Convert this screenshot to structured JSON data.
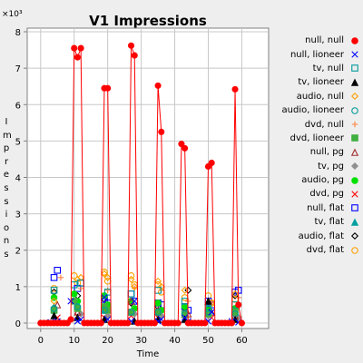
{
  "chart_data": {
    "type": "line",
    "title": "V1 Impressions",
    "xlabel": "Time",
    "ylabel": "Impressions",
    "y_multiplier": "×10³",
    "xlim": [
      -4,
      68
    ],
    "ylim": [
      -0.15,
      8.1
    ],
    "xticks": [
      0,
      10,
      20,
      30,
      40,
      50,
      60
    ],
    "yticks": [
      0,
      1,
      2,
      3,
      4,
      5,
      6,
      7,
      8
    ],
    "grid": true,
    "legend_position": "right",
    "series": [
      {
        "name": "null, null",
        "marker": "filled-circle",
        "color": "#ff0000",
        "line": true,
        "x": [
          0,
          1,
          2,
          3,
          4,
          5,
          6,
          7,
          8,
          9,
          10,
          11,
          12,
          13,
          14,
          15,
          16,
          17,
          18,
          19,
          20,
          21,
          22,
          23,
          24,
          25,
          26,
          27,
          28,
          29,
          30,
          31,
          32,
          33,
          34,
          35,
          36,
          37,
          38,
          39,
          40,
          41,
          42,
          43,
          44,
          45,
          46,
          47,
          48,
          49,
          50,
          51,
          52,
          53,
          54,
          55,
          56,
          57,
          58,
          59,
          60
        ],
        "y": [
          0,
          0,
          0,
          0,
          0,
          0,
          0,
          0,
          0,
          0.1,
          7.55,
          7.3,
          7.55,
          0,
          0,
          0,
          0,
          0,
          0,
          6.45,
          6.45,
          0,
          0,
          0,
          0,
          0,
          0,
          7.62,
          7.35,
          0,
          0,
          0,
          0,
          0,
          0,
          6.52,
          5.25,
          0,
          0,
          0,
          0,
          0,
          4.92,
          4.8,
          0,
          0,
          0,
          0,
          0,
          0,
          4.3,
          4.4,
          0,
          0,
          0,
          0,
          0,
          0,
          6.42,
          0.5,
          0
        ]
      },
      {
        "name": "null, lioneer",
        "marker": "x",
        "color": "#0000ff",
        "line": false,
        "x": [
          3,
          5,
          9,
          11,
          12,
          19,
          20,
          27,
          28,
          35,
          36,
          43,
          44,
          50,
          51,
          57,
          59
        ],
        "y": [
          0.02,
          0.05,
          0.6,
          0.05,
          0.1,
          0.7,
          0.1,
          0.05,
          0.6,
          0.05,
          0.1,
          0.15,
          0.05,
          0.05,
          0.3,
          0.05,
          0.02
        ]
      },
      {
        "name": "tv, null",
        "marker": "square",
        "color": "#009a9a",
        "line": false,
        "x": [
          4,
          10,
          12,
          20,
          27,
          35,
          43,
          50,
          58
        ],
        "y": [
          0.9,
          1.05,
          1.1,
          0.85,
          0.8,
          0.9,
          0.6,
          0.4,
          0.5
        ]
      },
      {
        "name": "tv, lioneer",
        "marker": "filled-triangle",
        "color": "#000000",
        "line": false,
        "x": [
          4,
          11,
          19,
          28,
          35,
          43,
          50,
          58
        ],
        "y": [
          0.2,
          0.15,
          0.1,
          0.05,
          0.1,
          0.1,
          0.6,
          0.1
        ]
      },
      {
        "name": "audio, null",
        "marker": "diamond",
        "color": "#ffa000",
        "line": false,
        "x": [
          4,
          11,
          12,
          19,
          20,
          27,
          28,
          35,
          36,
          43,
          51,
          58
        ],
        "y": [
          0.6,
          1.2,
          1.25,
          1.35,
          1.25,
          1.2,
          1.0,
          1.15,
          1.0,
          0.9,
          0.55,
          0.8
        ]
      },
      {
        "name": "audio, lioneer",
        "marker": "circle",
        "color": "#009a9a",
        "line": false,
        "x": [
          4,
          11,
          19,
          27,
          35,
          43,
          50,
          58
        ],
        "y": [
          0.4,
          0.45,
          0.35,
          0.3,
          0.3,
          0.25,
          0.3,
          0.25
        ]
      },
      {
        "name": "dvd, null",
        "marker": "plus",
        "color": "#ff8040",
        "line": false,
        "x": [
          6,
          12,
          20,
          28,
          36,
          44,
          51,
          59
        ],
        "y": [
          1.25,
          0.95,
          0.9,
          0.95,
          0.9,
          0.6,
          0.55,
          0.7
        ]
      },
      {
        "name": "dvd, lioneer",
        "marker": "filled-square",
        "color": "#40b040",
        "line": false,
        "x": [
          4,
          10,
          11,
          19,
          20,
          27,
          35,
          43,
          50,
          58
        ],
        "y": [
          0.35,
          0.6,
          0.4,
          0.45,
          0.35,
          0.3,
          0.3,
          0.25,
          0.25,
          0.3
        ]
      },
      {
        "name": "null, pg",
        "marker": "triangle",
        "color": "#a03030",
        "line": false,
        "x": [
          5,
          11,
          19,
          27,
          35,
          44,
          51,
          58
        ],
        "y": [
          0.5,
          0.3,
          0.45,
          0.6,
          0.35,
          0.25,
          0.3,
          0.2
        ]
      },
      {
        "name": "tv, pg",
        "marker": "filled-diamond",
        "color": "#909090",
        "line": false,
        "x": [
          4,
          12,
          20,
          28,
          36,
          43,
          50,
          59
        ],
        "y": [
          0.3,
          0.25,
          0.2,
          0.25,
          0.2,
          0.15,
          0.2,
          0.15
        ]
      },
      {
        "name": "audio, pg",
        "marker": "filled-circle",
        "color": "#00e000",
        "line": false,
        "x": [
          4,
          10,
          11,
          19,
          20,
          27,
          28,
          35,
          36,
          43,
          50,
          58
        ],
        "y": [
          0.7,
          0.8,
          0.6,
          0.75,
          0.5,
          0.6,
          0.4,
          0.55,
          0.35,
          0.45,
          0.35,
          0.4
        ]
      },
      {
        "name": "dvd, pg",
        "marker": "x",
        "color": "#ff0000",
        "line": false,
        "x": [
          5,
          11,
          19,
          27,
          35,
          43,
          51,
          59
        ],
        "y": [
          0.15,
          0.2,
          0.15,
          0.2,
          0.15,
          0.1,
          0.15,
          0.1
        ]
      },
      {
        "name": "null, flat",
        "marker": "square",
        "color": "#0000ff",
        "line": false,
        "x": [
          4,
          5,
          11,
          12,
          19,
          20,
          27,
          28,
          35,
          36,
          43,
          44,
          50,
          51,
          58,
          59
        ],
        "y": [
          1.25,
          1.45,
          0.95,
          1.1,
          0.65,
          0.55,
          0.8,
          0.6,
          0.55,
          0.5,
          0.45,
          0.35,
          0.6,
          0.5,
          0.85,
          0.9
        ]
      },
      {
        "name": "tv, flat",
        "marker": "filled-triangle",
        "color": "#00a0a0",
        "line": false,
        "x": [
          4,
          11,
          19,
          27,
          35,
          43,
          50,
          58
        ],
        "y": [
          0.45,
          0.5,
          0.35,
          0.3,
          0.3,
          0.25,
          0.45,
          0.3
        ]
      },
      {
        "name": "audio, flat",
        "marker": "diamond",
        "color": "#000000",
        "line": false,
        "x": [
          4,
          11,
          19,
          27,
          35,
          43,
          44,
          50,
          58
        ],
        "y": [
          0.85,
          0.75,
          0.65,
          0.55,
          0.45,
          0.4,
          0.9,
          0.5,
          0.75
        ]
      },
      {
        "name": "dvd, flat",
        "marker": "circle",
        "color": "#ffa000",
        "line": false,
        "x": [
          4,
          10,
          11,
          19,
          20,
          27,
          28,
          35,
          36,
          43,
          50,
          51,
          58
        ],
        "y": [
          0.95,
          1.3,
          1.1,
          1.4,
          1.15,
          1.3,
          1.05,
          1.05,
          0.85,
          0.7,
          0.75,
          0.55,
          0.65
        ]
      }
    ]
  }
}
